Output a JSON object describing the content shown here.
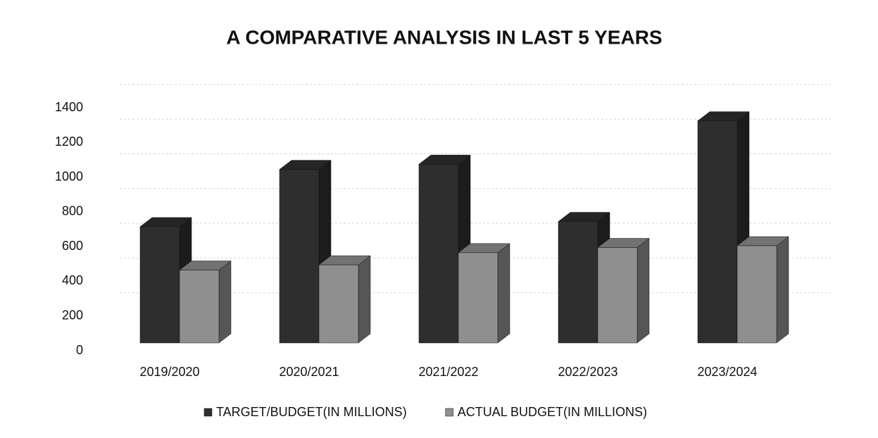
{
  "chart_data": {
    "type": "bar3d",
    "title": "A COMPARATIVE ANALYSIS IN LAST 5 YEARS",
    "categories": [
      "2019/2020",
      "2020/2021",
      "2021/2022",
      "2022/2023",
      "2023/2024"
    ],
    "series": [
      {
        "name": "TARGET/BUDGET(IN MILLIONS)",
        "color": "#2e2e2e",
        "values": [
          670,
          1000,
          1030,
          700,
          1280
        ]
      },
      {
        "name": "ACTUAL BUDGET(IN MILLIONS)",
        "color": "#8f8f8f",
        "values": [
          420,
          450,
          520,
          550,
          560
        ]
      }
    ],
    "ylim": [
      0,
      1400
    ],
    "yticks": [
      0,
      200,
      400,
      600,
      800,
      1000,
      1200,
      1400
    ],
    "grid": true,
    "legend": "bottom"
  }
}
